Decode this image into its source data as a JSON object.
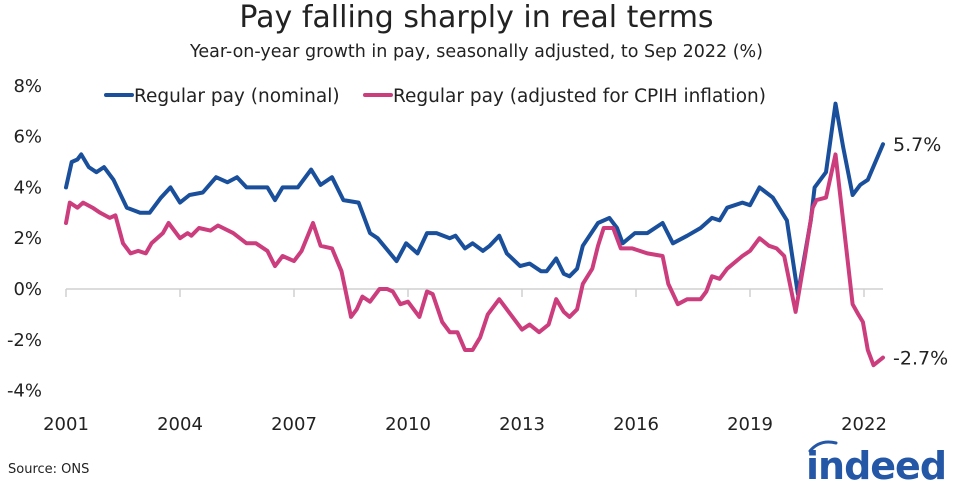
{
  "chart_data": {
    "type": "line",
    "title": "Pay falling sharply in real terms",
    "subtitle": "Year-on-year growth in pay, seasonally adjusted, to Sep 2022 (%)",
    "xlabel": "",
    "ylabel": "",
    "xlim": [
      2001,
      2023.2
    ],
    "ylim": [
      -4,
      8
    ],
    "y_ticks": [
      8,
      6,
      4,
      2,
      0,
      -2,
      -4
    ],
    "y_tick_labels": [
      "8%",
      "6%",
      "4%",
      "2%",
      "0%",
      "-2%",
      "-4%"
    ],
    "x_ticks": [
      2001,
      2004,
      2007,
      2010,
      2013,
      2016,
      2019,
      2022
    ],
    "x_tick_labels": [
      "2001",
      "2004",
      "2007",
      "2010",
      "2013",
      "2016",
      "2019",
      "2022"
    ],
    "grid": false,
    "legend_position": "top",
    "series": [
      {
        "name": "Regular pay (nominal)",
        "color": "#1a4f9c",
        "end_label": "5.7%",
        "points": [
          [
            2001.0,
            4.0
          ],
          [
            2001.15,
            5.0
          ],
          [
            2001.3,
            5.1
          ],
          [
            2001.4,
            5.3
          ],
          [
            2001.6,
            4.8
          ],
          [
            2001.8,
            4.6
          ],
          [
            2002.0,
            4.8
          ],
          [
            2002.25,
            4.3
          ],
          [
            2002.6,
            3.2
          ],
          [
            2002.95,
            3.0
          ],
          [
            2003.2,
            3.0
          ],
          [
            2003.5,
            3.6
          ],
          [
            2003.75,
            4.0
          ],
          [
            2004.0,
            3.4
          ],
          [
            2004.25,
            3.7
          ],
          [
            2004.6,
            3.8
          ],
          [
            2004.95,
            4.4
          ],
          [
            2005.25,
            4.2
          ],
          [
            2005.5,
            4.4
          ],
          [
            2005.75,
            4.0
          ],
          [
            2006.3,
            4.0
          ],
          [
            2006.5,
            3.5
          ],
          [
            2006.7,
            4.0
          ],
          [
            2007.1,
            4.0
          ],
          [
            2007.45,
            4.7
          ],
          [
            2007.7,
            4.1
          ],
          [
            2008.0,
            4.4
          ],
          [
            2008.3,
            3.5
          ],
          [
            2008.7,
            3.4
          ],
          [
            2009.0,
            2.2
          ],
          [
            2009.2,
            2.0
          ],
          [
            2009.7,
            1.1
          ],
          [
            2009.95,
            1.8
          ],
          [
            2010.25,
            1.4
          ],
          [
            2010.5,
            2.2
          ],
          [
            2010.75,
            2.2
          ],
          [
            2011.1,
            2.0
          ],
          [
            2011.25,
            2.1
          ],
          [
            2011.5,
            1.6
          ],
          [
            2011.7,
            1.8
          ],
          [
            2011.97,
            1.5
          ],
          [
            2012.15,
            1.7
          ],
          [
            2012.4,
            2.1
          ],
          [
            2012.6,
            1.4
          ],
          [
            2012.95,
            0.9
          ],
          [
            2013.2,
            1.0
          ],
          [
            2013.5,
            0.7
          ],
          [
            2013.65,
            0.7
          ],
          [
            2013.9,
            1.2
          ],
          [
            2014.1,
            0.6
          ],
          [
            2014.25,
            0.5
          ],
          [
            2014.45,
            0.8
          ],
          [
            2014.6,
            1.7
          ],
          [
            2015.0,
            2.6
          ],
          [
            2015.3,
            2.8
          ],
          [
            2015.5,
            2.4
          ],
          [
            2015.65,
            1.8
          ],
          [
            2015.97,
            2.2
          ],
          [
            2016.3,
            2.2
          ],
          [
            2016.7,
            2.6
          ],
          [
            2016.97,
            1.8
          ],
          [
            2017.35,
            2.1
          ],
          [
            2017.7,
            2.4
          ],
          [
            2018.0,
            2.8
          ],
          [
            2018.2,
            2.7
          ],
          [
            2018.4,
            3.2
          ],
          [
            2018.8,
            3.4
          ],
          [
            2019.0,
            3.3
          ],
          [
            2019.25,
            4.0
          ],
          [
            2019.6,
            3.6
          ],
          [
            2019.97,
            2.7
          ],
          [
            2020.26,
            -0.2
          ],
          [
            2020.6,
            2.7
          ],
          [
            2020.7,
            4.0
          ],
          [
            2021.0,
            4.6
          ],
          [
            2021.25,
            7.3
          ],
          [
            2021.45,
            5.6
          ],
          [
            2021.7,
            3.7
          ],
          [
            2021.9,
            4.1
          ],
          [
            2022.1,
            4.3
          ],
          [
            2022.5,
            5.7
          ]
        ]
      },
      {
        "name": "Regular pay (adjusted for CPIH inflation)",
        "color": "#cc3d7e",
        "end_label": "-2.7%",
        "points": [
          [
            2001.0,
            2.6
          ],
          [
            2001.1,
            3.4
          ],
          [
            2001.3,
            3.2
          ],
          [
            2001.45,
            3.4
          ],
          [
            2001.7,
            3.2
          ],
          [
            2001.9,
            3.0
          ],
          [
            2002.15,
            2.8
          ],
          [
            2002.3,
            2.9
          ],
          [
            2002.5,
            1.8
          ],
          [
            2002.7,
            1.4
          ],
          [
            2002.9,
            1.5
          ],
          [
            2003.1,
            1.4
          ],
          [
            2003.25,
            1.8
          ],
          [
            2003.55,
            2.2
          ],
          [
            2003.7,
            2.6
          ],
          [
            2004.0,
            2.0
          ],
          [
            2004.2,
            2.2
          ],
          [
            2004.3,
            2.1
          ],
          [
            2004.5,
            2.4
          ],
          [
            2004.8,
            2.3
          ],
          [
            2005.0,
            2.5
          ],
          [
            2005.4,
            2.2
          ],
          [
            2005.75,
            1.8
          ],
          [
            2006.0,
            1.8
          ],
          [
            2006.3,
            1.5
          ],
          [
            2006.5,
            0.9
          ],
          [
            2006.7,
            1.3
          ],
          [
            2007.0,
            1.1
          ],
          [
            2007.2,
            1.5
          ],
          [
            2007.5,
            2.6
          ],
          [
            2007.7,
            1.7
          ],
          [
            2008.0,
            1.6
          ],
          [
            2008.25,
            0.7
          ],
          [
            2008.5,
            -1.1
          ],
          [
            2008.65,
            -0.8
          ],
          [
            2008.8,
            -0.3
          ],
          [
            2009.0,
            -0.5
          ],
          [
            2009.25,
            0.0
          ],
          [
            2009.45,
            0.0
          ],
          [
            2009.6,
            -0.1
          ],
          [
            2009.8,
            -0.6
          ],
          [
            2010.0,
            -0.5
          ],
          [
            2010.3,
            -1.1
          ],
          [
            2010.5,
            -0.1
          ],
          [
            2010.65,
            -0.2
          ],
          [
            2010.9,
            -1.3
          ],
          [
            2011.1,
            -1.7
          ],
          [
            2011.3,
            -1.7
          ],
          [
            2011.5,
            -2.4
          ],
          [
            2011.7,
            -2.4
          ],
          [
            2011.9,
            -1.9
          ],
          [
            2012.1,
            -1.0
          ],
          [
            2012.4,
            -0.4
          ],
          [
            2012.75,
            -1.1
          ],
          [
            2013.0,
            -1.6
          ],
          [
            2013.2,
            -1.4
          ],
          [
            2013.45,
            -1.7
          ],
          [
            2013.7,
            -1.4
          ],
          [
            2013.9,
            -0.4
          ],
          [
            2014.1,
            -0.9
          ],
          [
            2014.25,
            -1.1
          ],
          [
            2014.45,
            -0.8
          ],
          [
            2014.6,
            0.2
          ],
          [
            2014.85,
            0.8
          ],
          [
            2015.0,
            1.7
          ],
          [
            2015.15,
            2.4
          ],
          [
            2015.4,
            2.4
          ],
          [
            2015.6,
            1.6
          ],
          [
            2015.9,
            1.6
          ],
          [
            2016.1,
            1.5
          ],
          [
            2016.3,
            1.4
          ],
          [
            2016.7,
            1.3
          ],
          [
            2016.85,
            0.2
          ],
          [
            2017.1,
            -0.6
          ],
          [
            2017.35,
            -0.4
          ],
          [
            2017.7,
            -0.4
          ],
          [
            2017.85,
            -0.1
          ],
          [
            2018.0,
            0.5
          ],
          [
            2018.2,
            0.4
          ],
          [
            2018.4,
            0.8
          ],
          [
            2018.8,
            1.3
          ],
          [
            2019.0,
            1.5
          ],
          [
            2019.25,
            2.0
          ],
          [
            2019.5,
            1.7
          ],
          [
            2019.7,
            1.6
          ],
          [
            2019.9,
            1.3
          ],
          [
            2020.2,
            -0.9
          ],
          [
            2020.45,
            1.3
          ],
          [
            2020.65,
            3.2
          ],
          [
            2020.75,
            3.5
          ],
          [
            2021.0,
            3.6
          ],
          [
            2021.25,
            5.3
          ],
          [
            2021.45,
            2.7
          ],
          [
            2021.7,
            -0.6
          ],
          [
            2021.85,
            -1.0
          ],
          [
            2021.97,
            -1.3
          ],
          [
            2022.1,
            -2.4
          ],
          [
            2022.25,
            -3.0
          ],
          [
            2022.5,
            -2.7
          ]
        ]
      }
    ]
  },
  "footer": {
    "source": "Source: ONS",
    "logo_text": "indeed",
    "logo_color": "#2557a7"
  }
}
